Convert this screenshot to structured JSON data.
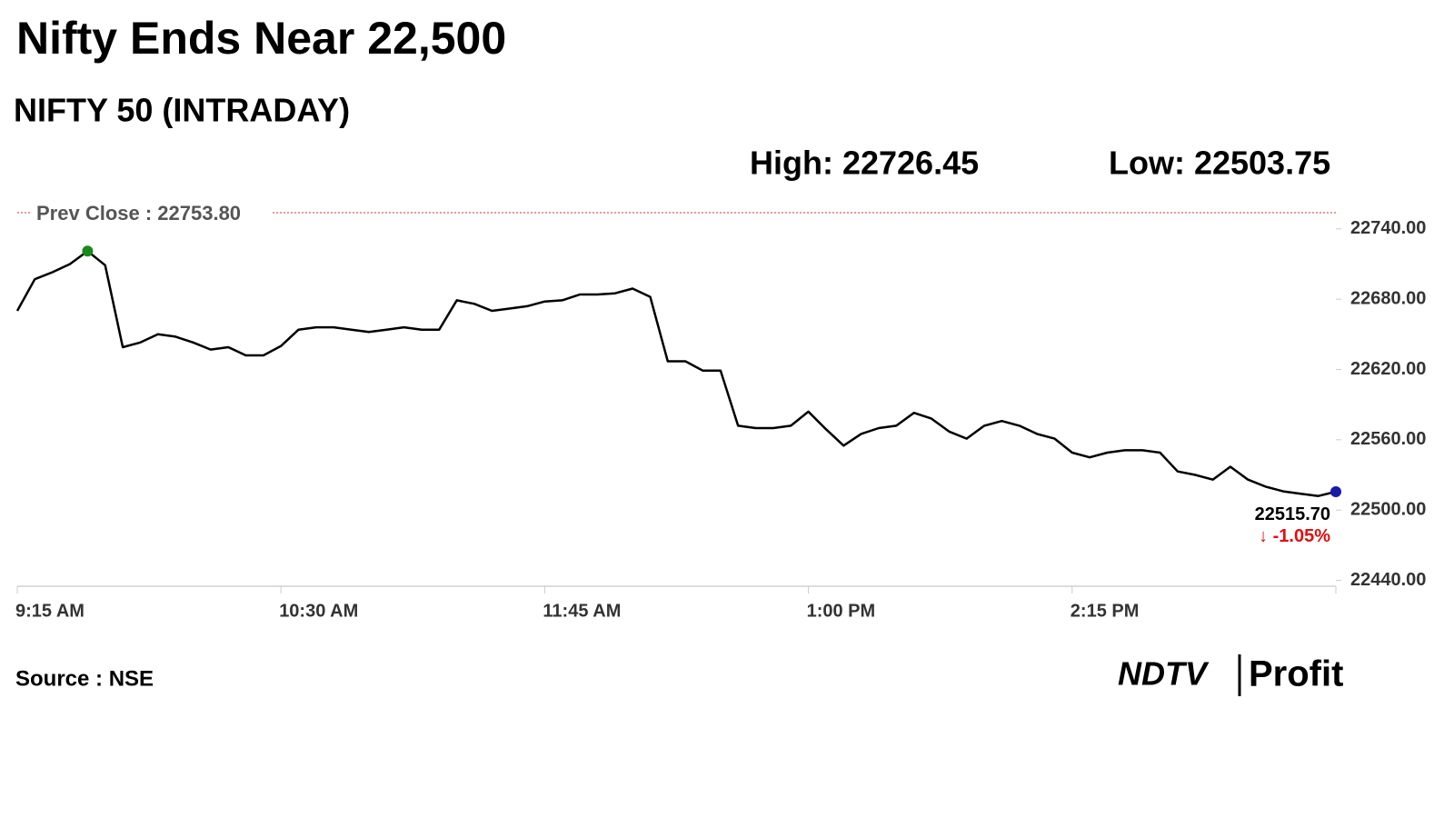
{
  "chart_data": {
    "type": "line",
    "title": "Nifty Ends Near 22,500",
    "subtitle": "NIFTY 50 (INTRADAY)",
    "high_label": "High: 22726.45",
    "low_label": "Low: 22503.75",
    "reference_line": {
      "value": 22753.8,
      "label": "Prev Close : 22753.80",
      "color": "#e03030"
    },
    "x": [
      "9:15 AM",
      null,
      null,
      null,
      null,
      null,
      null,
      null,
      null,
      null,
      null,
      null,
      null,
      null,
      null,
      "10:30 AM",
      null,
      null,
      null,
      null,
      null,
      null,
      null,
      null,
      null,
      null,
      null,
      null,
      null,
      null,
      "11:45 AM",
      null,
      null,
      null,
      null,
      null,
      null,
      null,
      null,
      null,
      null,
      null,
      null,
      null,
      null,
      "1:00 PM",
      null,
      null,
      null,
      null,
      null,
      null,
      null,
      null,
      null,
      null,
      null,
      null,
      null,
      null,
      "2:15 PM",
      null,
      null,
      null,
      null,
      null,
      null,
      null,
      null,
      null,
      null,
      null,
      null,
      null,
      null,
      null
    ],
    "series": [
      {
        "name": "NIFTY 50",
        "color": "#000000",
        "values": [
          22670,
          22697,
          22703,
          22710,
          22721,
          22709,
          22639,
          22643,
          22650,
          22648,
          22643,
          22637,
          22639,
          22632,
          22632,
          22640,
          22654,
          22656,
          22656,
          22654,
          22652,
          22654,
          22656,
          22654,
          22654,
          22679,
          22676,
          22670,
          22672,
          22674,
          22678,
          22679,
          22684,
          22684,
          22685,
          22689,
          22682,
          22627,
          22627,
          22619,
          22619,
          22572,
          22570,
          22570,
          22572,
          22584,
          22569,
          22555,
          22565,
          22570,
          22572,
          22583,
          22578,
          22567,
          22561,
          22572,
          22576,
          22572,
          22565,
          22561,
          22549,
          22545,
          22549,
          22551,
          22551,
          22549,
          22533,
          22530,
          22526,
          22537,
          22526,
          22520,
          22516,
          22514,
          22512,
          22515.7
        ]
      }
    ],
    "markers": [
      {
        "index": 4,
        "color": "#1a8a1a"
      },
      {
        "index": 75,
        "color": "#1a1aa8"
      }
    ],
    "last_label": "22515.70",
    "change_label": "↓ -1.05%",
    "change_color": "#e01010",
    "ylim": [
      22435,
      22760
    ],
    "yticks": [
      {
        "value": 22440,
        "label": "22440.00"
      },
      {
        "value": 22500,
        "label": "22500.00"
      },
      {
        "value": 22560,
        "label": "22560.00"
      },
      {
        "value": 22620,
        "label": "22620.00"
      },
      {
        "value": 22680,
        "label": "22680.00"
      },
      {
        "value": 22740,
        "label": "22740.00"
      }
    ],
    "source": "Source : NSE",
    "brand": "NDTV",
    "brand2": "Profit"
  }
}
